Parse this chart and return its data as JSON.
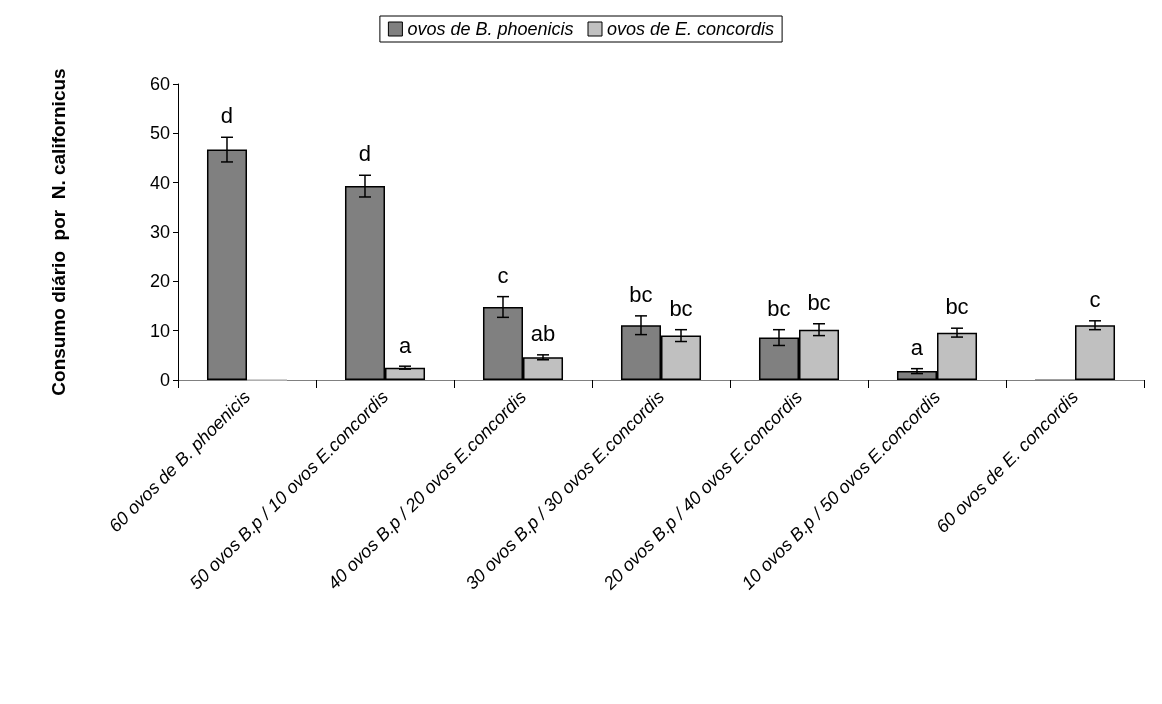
{
  "chart_data": {
    "type": "bar",
    "ylabel": "Consumo diário  por  N. californicus",
    "categories": [
      "60 ovos de B. phoenicis",
      "50 ovos B.p / 10 ovos E.concordis",
      "40 ovos B.p / 20 ovos E.concordis",
      "30 ovos B.p / 30 ovos E.concordis",
      "20 ovos B.p / 40 ovos E.concordis",
      "10 ovos B.p / 50 ovos E.concordis",
      "60 ovos de E. concordis"
    ],
    "series": [
      {
        "name": "ovos de B. phoenicis",
        "color": "#808080",
        "values": [
          46.7,
          39.3,
          14.8,
          11.1,
          8.6,
          1.8,
          0
        ],
        "errors": [
          2.5,
          2.2,
          2.1,
          1.9,
          1.6,
          0.5,
          null
        ],
        "value_labels": [
          "d",
          "d",
          "c",
          "bc",
          "bc",
          "a",
          null
        ]
      },
      {
        "name": "ovos de E. concordis",
        "color": "#c0c0c0",
        "values": [
          0,
          2.5,
          4.6,
          9.0,
          10.2,
          9.6,
          11.1
        ],
        "errors": [
          null,
          0.3,
          0.5,
          1.2,
          1.2,
          0.9,
          0.9
        ],
        "value_labels": [
          null,
          "a",
          "ab",
          "bc",
          "bc",
          "bc",
          "c"
        ]
      }
    ],
    "ylim": [
      0,
      60
    ],
    "yticks": [
      0,
      10,
      20,
      30,
      40,
      50,
      60
    ],
    "grid": false,
    "legend": "top"
  }
}
